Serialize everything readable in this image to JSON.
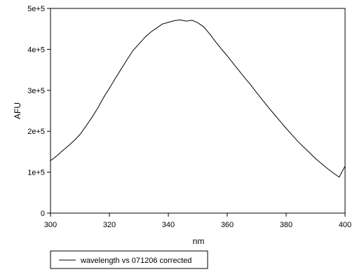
{
  "chart_data": {
    "type": "line",
    "title": "",
    "xlabel": "nm",
    "ylabel": "AFU",
    "xlim": [
      300,
      400
    ],
    "ylim": [
      0,
      500000
    ],
    "x_ticks": [
      300,
      320,
      340,
      360,
      380,
      400
    ],
    "x_tick_labels": [
      "300",
      "320",
      "340",
      "360",
      "380",
      "400"
    ],
    "y_ticks": [
      0,
      100000,
      200000,
      300000,
      400000,
      500000
    ],
    "y_tick_labels": [
      "0",
      "1e+5",
      "2e+5",
      "3e+5",
      "4e+5",
      "5e+5"
    ],
    "grid": false,
    "legend_position": "bottom-left",
    "series": [
      {
        "name": "wavelength vs 071206 corrected",
        "color": "#000000",
        "x": [
          300,
          302,
          304,
          306,
          308,
          310,
          312,
          314,
          316,
          318,
          320,
          322,
          324,
          326,
          328,
          330,
          332,
          334,
          336,
          338,
          340,
          342,
          344,
          346,
          348,
          350,
          352,
          354,
          356,
          358,
          360,
          362,
          364,
          366,
          368,
          370,
          372,
          374,
          376,
          378,
          380,
          382,
          384,
          386,
          388,
          390,
          392,
          394,
          396,
          398,
          400
        ],
        "y": [
          128000,
          139000,
          152000,
          164000,
          177000,
          192000,
          212000,
          233000,
          256000,
          282000,
          305000,
          329000,
          352000,
          375000,
          397000,
          413000,
          429000,
          442000,
          452000,
          462000,
          466000,
          470000,
          472000,
          469000,
          471000,
          465000,
          455000,
          438000,
          419000,
          401000,
          384000,
          366000,
          348000,
          330000,
          313000,
          294000,
          276000,
          258000,
          241000,
          224000,
          207000,
          191000,
          175000,
          161000,
          147000,
          133000,
          121000,
          109000,
          98000,
          88000,
          115000
        ]
      }
    ]
  }
}
